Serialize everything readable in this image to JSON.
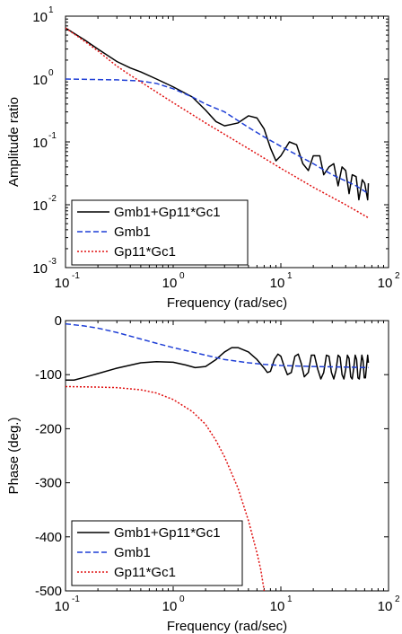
{
  "chart_data": [
    {
      "type": "line",
      "xlabel": "Frequency (rad/sec)",
      "ylabel": "Amplitude ratio",
      "xscale": "log",
      "yscale": "log",
      "xlim": [
        0.1,
        100
      ],
      "ylim": [
        0.001,
        10
      ],
      "x_ticks": [
        "10",
        "10",
        "10",
        "10"
      ],
      "x_tick_exponents": [
        "-1",
        "0",
        "1",
        "2"
      ],
      "y_ticks": [
        "10",
        "10",
        "10",
        "10",
        "10"
      ],
      "y_tick_exponents": [
        "-3",
        "-2",
        "-1",
        "0",
        "1"
      ],
      "legend_position": "bottom-left",
      "series": [
        {
          "name": "Gmb1+Gp11*Gc1",
          "color": "#000000",
          "style": "solid",
          "points": [
            [
              0.1,
              6.5
            ],
            [
              0.15,
              4.2
            ],
            [
              0.2,
              3.0
            ],
            [
              0.3,
              1.9
            ],
            [
              0.4,
              1.5
            ],
            [
              0.5,
              1.3
            ],
            [
              0.7,
              1.0
            ],
            [
              1.0,
              0.75
            ],
            [
              1.5,
              0.52
            ],
            [
              2.0,
              0.32
            ],
            [
              2.5,
              0.21
            ],
            [
              3.0,
              0.18
            ],
            [
              4.0,
              0.2
            ],
            [
              5.0,
              0.26
            ],
            [
              6.0,
              0.24
            ],
            [
              7.0,
              0.16
            ],
            [
              8.0,
              0.08
            ],
            [
              9.0,
              0.05
            ],
            [
              10.0,
              0.06
            ],
            [
              12.0,
              0.1
            ],
            [
              14.0,
              0.09
            ],
            [
              16.0,
              0.045
            ],
            [
              18.0,
              0.035
            ],
            [
              20.0,
              0.06
            ],
            [
              23.0,
              0.06
            ],
            [
              25.0,
              0.03
            ],
            [
              28.0,
              0.04
            ],
            [
              31.0,
              0.045
            ],
            [
              34.0,
              0.02
            ],
            [
              37.0,
              0.04
            ],
            [
              40.0,
              0.035
            ],
            [
              43.0,
              0.015
            ],
            [
              46.0,
              0.03
            ],
            [
              50.0,
              0.028
            ],
            [
              53.0,
              0.012
            ],
            [
              57.0,
              0.025
            ],
            [
              60.0,
              0.022
            ],
            [
              64.0,
              0.012
            ],
            [
              65.0,
              0.022
            ]
          ]
        },
        {
          "name": "Gmb1",
          "color": "#1f3fd6",
          "style": "dashed",
          "points": [
            [
              0.1,
              1.0
            ],
            [
              0.2,
              0.98
            ],
            [
              0.3,
              0.97
            ],
            [
              0.5,
              0.93
            ],
            [
              0.7,
              0.85
            ],
            [
              1.0,
              0.7
            ],
            [
              1.5,
              0.52
            ],
            [
              2.0,
              0.4
            ],
            [
              3.0,
              0.3
            ],
            [
              5.0,
              0.17
            ],
            [
              7.0,
              0.12
            ],
            [
              10.0,
              0.085
            ],
            [
              20.0,
              0.045
            ],
            [
              30.0,
              0.03
            ],
            [
              50.0,
              0.02
            ],
            [
              65.0,
              0.015
            ]
          ]
        },
        {
          "name": "Gp11*Gc1",
          "color": "#e01010",
          "style": "dotted",
          "points": [
            [
              0.1,
              6.5
            ],
            [
              0.15,
              4.0
            ],
            [
              0.2,
              2.8
            ],
            [
              0.3,
              1.6
            ],
            [
              0.4,
              1.15
            ],
            [
              0.5,
              0.9
            ],
            [
              0.7,
              0.62
            ],
            [
              1.0,
              0.42
            ],
            [
              2.0,
              0.2
            ],
            [
              5.0,
              0.078
            ],
            [
              10.0,
              0.038
            ],
            [
              20.0,
              0.019
            ],
            [
              40.0,
              0.01
            ],
            [
              65.0,
              0.0062
            ]
          ]
        }
      ]
    },
    {
      "type": "line",
      "xlabel": "Frequency (rad/sec)",
      "ylabel": "Phase (deg.)",
      "xscale": "log",
      "yscale": "linear",
      "xlim": [
        0.1,
        100
      ],
      "ylim": [
        -500,
        0
      ],
      "x_ticks": [
        "10",
        "10",
        "10",
        "10"
      ],
      "x_tick_exponents": [
        "-1",
        "0",
        "1",
        "2"
      ],
      "y_ticks": [
        "0",
        "-100",
        "-200",
        "-300",
        "-400",
        "-500"
      ],
      "legend_position": "bottom-left",
      "series": [
        {
          "name": "Gmb1+Gp11*Gc1",
          "color": "#000000",
          "style": "solid",
          "points": [
            [
              0.1,
              -110
            ],
            [
              0.12,
              -110
            ],
            [
              0.15,
              -105
            ],
            [
              0.2,
              -98
            ],
            [
              0.3,
              -88
            ],
            [
              0.5,
              -78
            ],
            [
              0.7,
              -76
            ],
            [
              1.0,
              -77
            ],
            [
              1.3,
              -82
            ],
            [
              1.6,
              -87
            ],
            [
              2.0,
              -85
            ],
            [
              2.5,
              -72
            ],
            [
              3.0,
              -58
            ],
            [
              3.5,
              -50
            ],
            [
              4.0,
              -50
            ],
            [
              5.0,
              -58
            ],
            [
              6.0,
              -72
            ],
            [
              7.0,
              -88
            ],
            [
              7.5,
              -96
            ],
            [
              8.0,
              -94
            ],
            [
              8.7,
              -72
            ],
            [
              9.4,
              -62
            ],
            [
              10.0,
              -66
            ],
            [
              10.7,
              -84
            ],
            [
              11.5,
              -100
            ],
            [
              12.5,
              -96
            ],
            [
              13.5,
              -66
            ],
            [
              14.5,
              -62
            ],
            [
              15.5,
              -80
            ],
            [
              16.5,
              -104
            ],
            [
              18.0,
              -96
            ],
            [
              19.2,
              -64
            ],
            [
              20.5,
              -64
            ],
            [
              22.0,
              -90
            ],
            [
              23.5,
              -108
            ],
            [
              25.0,
              -96
            ],
            [
              26.5,
              -64
            ],
            [
              28.0,
              -66
            ],
            [
              29.5,
              -96
            ],
            [
              31.0,
              -108
            ],
            [
              32.5,
              -92
            ],
            [
              34.0,
              -64
            ],
            [
              35.5,
              -68
            ],
            [
              37.0,
              -100
            ],
            [
              38.5,
              -108
            ],
            [
              40.0,
              -90
            ],
            [
              41.5,
              -64
            ],
            [
              43.0,
              -70
            ],
            [
              44.5,
              -104
            ],
            [
              46.0,
              -108
            ],
            [
              47.5,
              -88
            ],
            [
              49.0,
              -64
            ],
            [
              50.5,
              -72
            ],
            [
              52.0,
              -106
            ],
            [
              53.5,
              -108
            ],
            [
              55.0,
              -86
            ],
            [
              56.5,
              -64
            ],
            [
              58.0,
              -74
            ],
            [
              59.5,
              -106
            ],
            [
              61.0,
              -106
            ],
            [
              62.5,
              -84
            ],
            [
              64.0,
              -64
            ],
            [
              65.0,
              -78
            ]
          ]
        },
        {
          "name": "Gmb1",
          "color": "#1f3fd6",
          "style": "dashed",
          "points": [
            [
              0.1,
              -6
            ],
            [
              0.15,
              -10
            ],
            [
              0.2,
              -14
            ],
            [
              0.3,
              -22
            ],
            [
              0.5,
              -34
            ],
            [
              0.7,
              -42
            ],
            [
              1.0,
              -50
            ],
            [
              1.5,
              -58
            ],
            [
              2.0,
              -64
            ],
            [
              3.0,
              -72
            ],
            [
              5.0,
              -78
            ],
            [
              7.0,
              -81
            ],
            [
              10.0,
              -83
            ],
            [
              20.0,
              -85
            ],
            [
              40.0,
              -86
            ],
            [
              65.0,
              -87
            ]
          ]
        },
        {
          "name": "Gp11*Gc1",
          "color": "#e01010",
          "style": "dotted",
          "points": [
            [
              0.1,
              -122
            ],
            [
              0.2,
              -123
            ],
            [
              0.3,
              -124
            ],
            [
              0.5,
              -128
            ],
            [
              0.7,
              -134
            ],
            [
              1.0,
              -146
            ],
            [
              1.5,
              -168
            ],
            [
              2.0,
              -192
            ],
            [
              2.5,
              -222
            ],
            [
              3.0,
              -252
            ],
            [
              4.0,
              -310
            ],
            [
              5.0,
              -370
            ],
            [
              6.0,
              -430
            ],
            [
              6.5,
              -460
            ],
            [
              7.0,
              -500
            ]
          ]
        }
      ]
    }
  ]
}
